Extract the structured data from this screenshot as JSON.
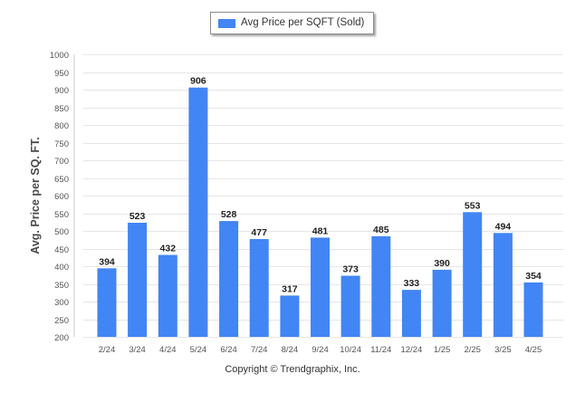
{
  "legend": {
    "label": "Avg Price per SQFT (Sold)"
  },
  "footer": {
    "copyright": "Copyright © Trendgraphix, Inc."
  },
  "colors": {
    "bar": "#4285f4",
    "grid": "#e6e6e6",
    "tick_text": "#555555",
    "label_text": "#222222"
  },
  "chart_data": {
    "type": "bar",
    "title": "",
    "xlabel": "",
    "ylabel": "Avg. Price per SQ. FT.",
    "ylim": [
      200,
      1000
    ],
    "yticks": [
      200,
      250,
      300,
      350,
      400,
      450,
      500,
      550,
      600,
      650,
      700,
      750,
      800,
      850,
      900,
      950,
      1000
    ],
    "grid": true,
    "legend_position": "top-center",
    "data_labels": true,
    "categories": [
      "2/24",
      "3/24",
      "4/24",
      "5/24",
      "6/24",
      "7/24",
      "8/24",
      "9/24",
      "10/24",
      "11/24",
      "12/24",
      "1/25",
      "2/25",
      "3/25",
      "4/25"
    ],
    "series": [
      {
        "name": "Avg Price per SQFT (Sold)",
        "values": [
          394,
          523,
          432,
          906,
          528,
          477,
          317,
          481,
          373,
          485,
          333,
          390,
          553,
          494,
          354
        ]
      }
    ]
  }
}
